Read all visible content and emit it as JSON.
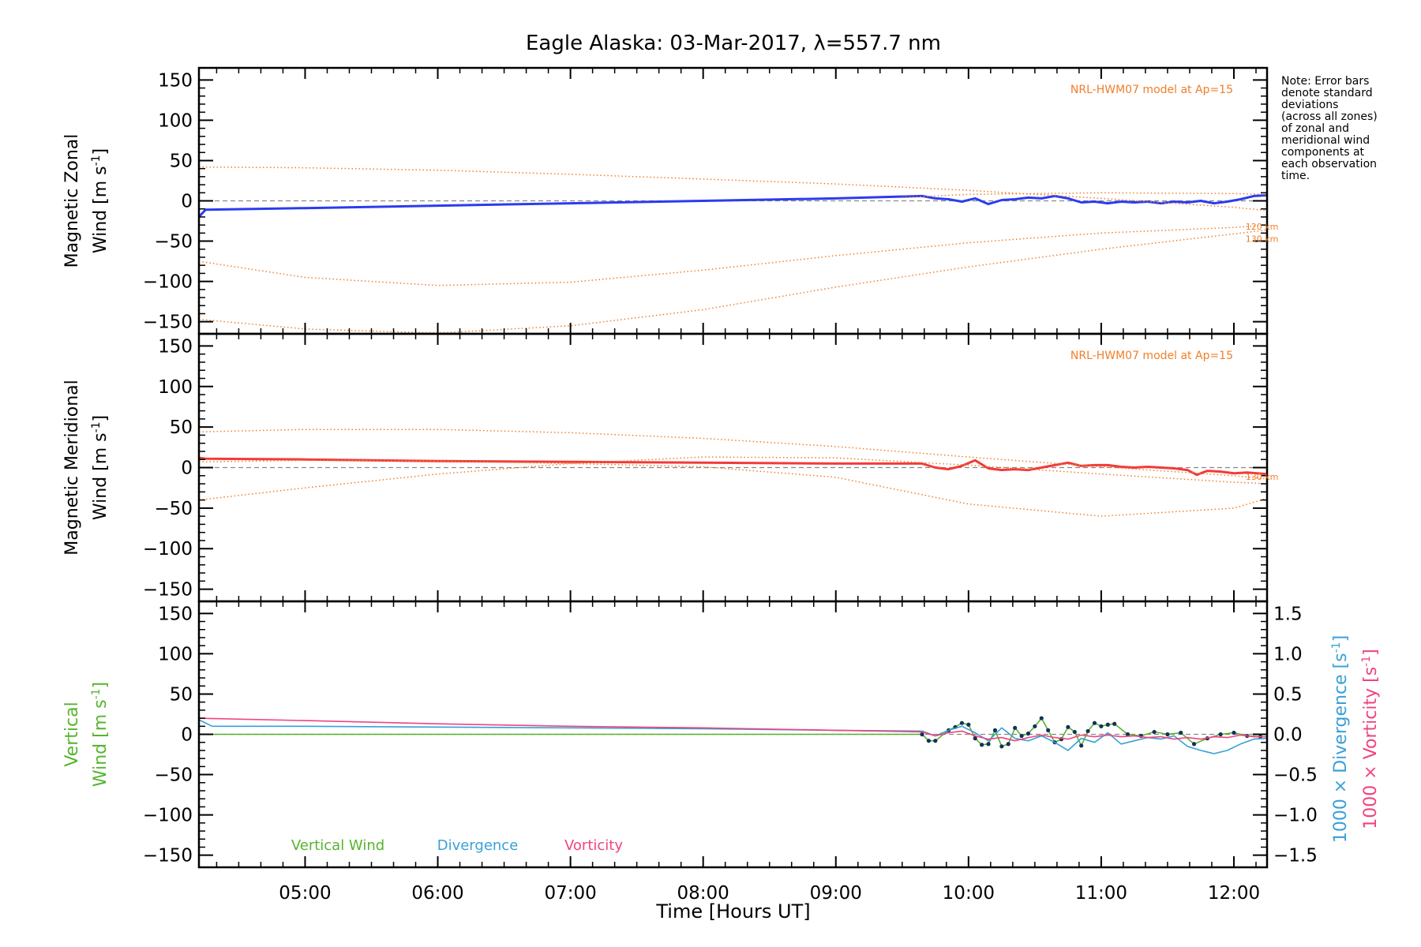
{
  "chart_data": {
    "type": "line",
    "title": "Eagle Alaska: 03-Mar-2017, λ=557.7 nm",
    "xlabel": "Time [Hours UT]",
    "x_ticks": [
      "05:00",
      "06:00",
      "07:00",
      "08:00",
      "09:00",
      "10:00",
      "11:00",
      "12:00"
    ],
    "xlim_hours": [
      4.2,
      12.25
    ],
    "note_lines": [
      "Note: Error bars",
      "denote standard",
      "deviations",
      "(across all zones)",
      "of zonal and",
      "meridional wind",
      "components at",
      "each observation",
      "time."
    ],
    "panels": [
      {
        "id": "zonal",
        "ylabel_lines": [
          "Magnetic Zonal",
          "Wind [m s-1]"
        ],
        "ylim": [
          -165,
          165
        ],
        "yticks": [
          -150,
          -100,
          -50,
          0,
          50,
          100,
          150
        ],
        "model_label": "NRL-HWM07 model at Ap=15",
        "altitude_labels": [
          {
            "text": "120 km",
            "x": 11.8,
            "y": -32
          },
          {
            "text": "130 km",
            "x": 11.8,
            "y": -47
          }
        ],
        "series": [
          {
            "role": "main",
            "color": "#2b3cf0",
            "x": [
              4.2,
              4.25,
              5.0,
              6.0,
              7.0,
              8.0,
              9.0,
              9.65,
              9.75,
              9.85,
              9.95,
              10.05,
              10.15,
              10.25,
              10.35,
              10.45,
              10.55,
              10.65,
              10.75,
              10.85,
              10.95,
              11.05,
              11.15,
              11.25,
              11.35,
              11.45,
              11.55,
              11.65,
              11.75,
              11.85,
              11.95,
              12.05,
              12.15,
              12.25
            ],
            "y": [
              -20,
              -11,
              -9,
              -6,
              -3,
              0,
              3,
              6,
              3,
              2,
              -1,
              3,
              -4,
              1,
              2,
              4,
              3,
              6,
              3,
              -2,
              -1,
              -3,
              -1,
              -2,
              -1,
              -3,
              -1,
              -2,
              0,
              -3,
              -1,
              2,
              6,
              7
            ]
          },
          {
            "role": "model",
            "color": "#f07f2a",
            "x": [
              4.2,
              5.0,
              6.0,
              7.0,
              8.0,
              9.0,
              10.0,
              11.0,
              12.0,
              12.25
            ],
            "y": [
              42,
              41,
              38,
              33,
              27,
              21,
              13,
              3,
              -8,
              -12
            ]
          },
          {
            "role": "model",
            "color": "#f07f2a",
            "x": [
              4.2,
              5.0,
              6.0,
              7.0,
              8.0,
              9.0,
              10.0,
              11.0,
              12.0,
              12.25
            ],
            "y": [
              -75,
              -95,
              -105,
              -101,
              -86,
              -68,
              -52,
              -40,
              -33,
              -30
            ]
          },
          {
            "role": "model",
            "color": "#f07f2a",
            "x": [
              4.2,
              5.0,
              6.0,
              7.0,
              8.0,
              9.0,
              10.0,
              11.0,
              12.0,
              12.25
            ],
            "y": [
              -147,
              -159,
              -164,
              -155,
              -135,
              -107,
              -82,
              -60,
              -41,
              -36
            ]
          },
          {
            "role": "model",
            "color": "#f07f2a",
            "x": [
              9.5,
              10.0,
              11.0,
              12.0,
              12.25
            ],
            "y": [
              4,
              8,
              10,
              9,
              8
            ]
          }
        ]
      },
      {
        "id": "meridional",
        "ylabel_lines": [
          "Magnetic Meridional",
          "Wind [m s-1]"
        ],
        "ylim": [
          -165,
          165
        ],
        "yticks": [
          -150,
          -100,
          -50,
          0,
          50,
          100,
          150
        ],
        "model_label": "NRL-HWM07 model at Ap=15",
        "altitude_labels": [
          {
            "text": "130 km",
            "x": 11.8,
            "y": -11
          }
        ],
        "series": [
          {
            "role": "main",
            "color": "#f23a3a",
            "x": [
              4.2,
              4.25,
              5.0,
              6.0,
              7.0,
              8.0,
              9.0,
              9.65,
              9.75,
              9.85,
              9.95,
              10.05,
              10.15,
              10.25,
              10.35,
              10.45,
              10.55,
              10.65,
              10.75,
              10.85,
              10.95,
              11.05,
              11.15,
              11.25,
              11.35,
              11.45,
              11.55,
              11.65,
              11.72,
              11.8,
              11.9,
              12.0,
              12.1,
              12.25
            ],
            "y": [
              12,
              11,
              10,
              8,
              7,
              6,
              5,
              5,
              0,
              -2,
              2,
              9,
              -1,
              -3,
              -2,
              -3,
              0,
              3,
              6,
              2,
              3,
              3,
              1,
              0,
              1,
              0,
              -1,
              -3,
              -9,
              -4,
              -5,
              -7,
              -6,
              -8
            ]
          },
          {
            "role": "model",
            "color": "#f07f2a",
            "x": [
              4.2,
              5.0,
              6.0,
              7.0,
              8.0,
              9.0,
              10.0,
              11.0,
              12.0,
              12.25
            ],
            "y": [
              44,
              47,
              47,
              43,
              36,
              26,
              13,
              1,
              -10,
              -14
            ]
          },
          {
            "role": "model",
            "color": "#f07f2a",
            "x": [
              4.2,
              5.0,
              6.0,
              7.0,
              8.0,
              9.0,
              10.0,
              11.0,
              12.0,
              12.25
            ],
            "y": [
              -40,
              -25,
              -8,
              5,
              13,
              12,
              3,
              -8,
              -18,
              -20
            ]
          },
          {
            "role": "model",
            "color": "#f07f2a",
            "x": [
              4.2,
              5.0,
              6.0,
              7.0,
              8.0,
              9.0,
              10.0,
              11.0,
              12.0,
              12.25
            ],
            "y": [
              7,
              9,
              8,
              5,
              1,
              -12,
              -45,
              -60,
              -50,
              -38
            ]
          }
        ]
      },
      {
        "id": "vertical",
        "ylabel_lines": [
          "Vertical",
          "Wind [m s-1]"
        ],
        "ylim": [
          -165,
          165
        ],
        "yticks": [
          -150,
          -100,
          -50,
          0,
          50,
          100,
          150
        ],
        "right_axis": {
          "ylim": [
            -1.65,
            1.65
          ],
          "yticks": [
            "-1.5",
            "-1.0",
            "-0.5",
            "0.0",
            "0.5",
            "1.0",
            "1.5"
          ],
          "labels": [
            {
              "text": "1000 × Divergence [s-1]",
              "color": "#3aa0d6"
            },
            {
              "text": "1000 × Vorticity [s-1]",
              "color": "#f0437f"
            }
          ]
        },
        "legend": [
          {
            "name": "Vertical Wind",
            "color": "#56b42d"
          },
          {
            "name": "Divergence",
            "color": "#3aa0d6"
          },
          {
            "name": "Vorticity",
            "color": "#f0437f"
          }
        ],
        "series": [
          {
            "name": "Vertical Wind",
            "color": "#56b42d",
            "axis": "left",
            "markers": true,
            "x": [
              4.2,
              9.65,
              9.7,
              9.75,
              9.85,
              9.9,
              9.95,
              10.0,
              10.05,
              10.1,
              10.15,
              10.2,
              10.25,
              10.3,
              10.35,
              10.4,
              10.45,
              10.5,
              10.55,
              10.6,
              10.65,
              10.7,
              10.75,
              10.8,
              10.85,
              10.9,
              10.95,
              11.0,
              11.05,
              11.1,
              11.2,
              11.3,
              11.4,
              11.5,
              11.6,
              11.7,
              11.8,
              11.9,
              12.0,
              12.1,
              12.2
            ],
            "y": [
              0,
              0,
              -8,
              -8,
              5,
              9,
              14,
              12,
              -5,
              -13,
              -12,
              5,
              -15,
              -12,
              8,
              -2,
              1,
              10,
              20,
              5,
              -10,
              -6,
              9,
              3,
              -14,
              4,
              14,
              10,
              12,
              13,
              0,
              -2,
              3,
              0,
              2,
              -12,
              -5,
              0,
              2,
              -2,
              -3
            ]
          },
          {
            "name": "Divergence",
            "color": "#3aa0d6",
            "axis": "right",
            "markers": false,
            "x": [
              4.2,
              4.3,
              5.0,
              6.0,
              7.0,
              8.0,
              9.0,
              9.65,
              9.75,
              9.85,
              9.95,
              10.05,
              10.15,
              10.25,
              10.35,
              10.45,
              10.55,
              10.65,
              10.75,
              10.85,
              10.95,
              11.05,
              11.15,
              11.25,
              11.35,
              11.45,
              11.55,
              11.65,
              11.75,
              11.85,
              11.95,
              12.05,
              12.15,
              12.25
            ],
            "y": [
              0.18,
              0.1,
              0.1,
              0.09,
              0.08,
              0.07,
              0.05,
              0.04,
              -0.02,
              0.05,
              0.1,
              0.02,
              -0.08,
              0.08,
              -0.05,
              -0.08,
              -0.02,
              -0.1,
              -0.2,
              -0.05,
              -0.1,
              0.02,
              -0.12,
              -0.08,
              -0.04,
              -0.06,
              -0.02,
              -0.15,
              -0.2,
              -0.24,
              -0.2,
              -0.12,
              -0.06,
              -0.05
            ]
          },
          {
            "name": "Vorticity",
            "color": "#f0437f",
            "axis": "right",
            "markers": false,
            "x": [
              4.2,
              5.0,
              6.0,
              7.0,
              8.0,
              9.0,
              9.65,
              9.75,
              9.85,
              9.95,
              10.05,
              10.15,
              10.25,
              10.35,
              10.45,
              10.55,
              10.65,
              10.75,
              10.85,
              10.95,
              11.05,
              11.15,
              11.25,
              11.35,
              11.45,
              11.55,
              11.65,
              11.75,
              11.85,
              11.95,
              12.05,
              12.15,
              12.25
            ],
            "y": [
              0.2,
              0.17,
              0.13,
              0.1,
              0.08,
              0.05,
              0.03,
              -0.02,
              0.02,
              0.04,
              -0.02,
              -0.06,
              -0.04,
              -0.08,
              -0.04,
              -0.01,
              -0.04,
              -0.06,
              -0.01,
              -0.03,
              -0.01,
              -0.03,
              -0.02,
              -0.04,
              -0.03,
              -0.06,
              -0.04,
              -0.06,
              -0.03,
              -0.04,
              -0.01,
              -0.03,
              -0.03
            ]
          }
        ]
      }
    ]
  }
}
